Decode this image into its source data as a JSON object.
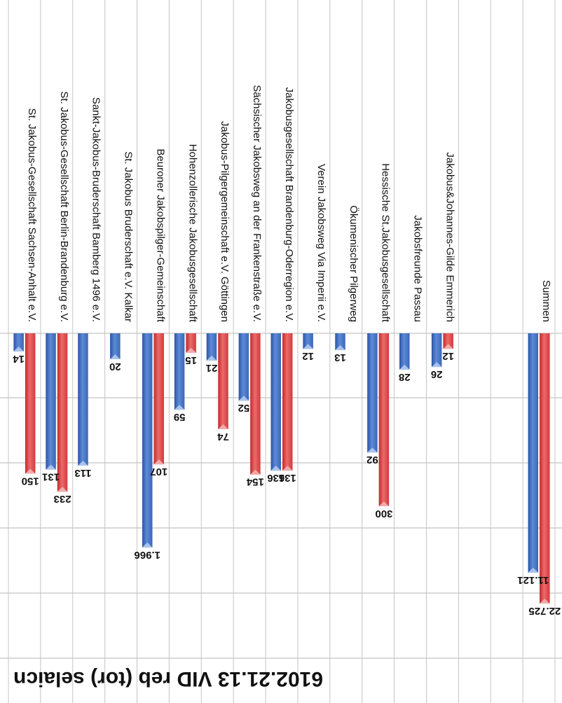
{
  "chart_data": {
    "type": "bar",
    "orientation": "horizontal",
    "title": "6102.21.13 VID reb (tor) selaicn",
    "categories": [
      "St. Jakobus-Gesellschaft Sachsen-Anhalt e.V.",
      "St. Jakobus-Gesellschaft Berlin-Brandenburg e.V.",
      "Sankt-Jakobus-Bruderschaft Bamberg 1496 e.V.",
      "St. Jakobus Bruderschaft e.V. Kalkar",
      "Beuroner Jakobspilger-Gemeinschaft",
      "Hohenzollerische Jakobusgesellschaft",
      "Jakobus-Pilgergemeinschaft e.V. Göttingen",
      "Sächsischer Jakobsweg an der Frankenstraße e.V.",
      "Jakobusgesellschaft Brandenburg-Oderregion e.V.",
      "Verein Jakobsweg Via Imperii e.V.",
      "Ökumenischer Pilgerweg",
      "Hessische St.Jakobusgesellschaft",
      "Jakobsfreunde Passau",
      "Jakobus&Johannes-Gilde Emmerich",
      "",
      "",
      "Summen"
    ],
    "series": [
      {
        "color": "#3f6fc2",
        "values": [
          14,
          131,
          113,
          20,
          1966,
          59,
          21,
          52,
          136,
          12,
          13,
          92,
          28,
          26,
          null,
          null,
          11121
        ]
      },
      {
        "color": "#d9393b",
        "values": [
          150,
          233,
          null,
          null,
          107,
          15,
          74,
          154,
          136,
          null,
          null,
          300,
          null,
          12,
          null,
          null,
          22725
        ]
      }
    ],
    "value_labels": {
      "series_0": [
        "14",
        "131",
        "113",
        "20",
        "1.966",
        "59",
        "21",
        "52",
        "136",
        "12",
        "13",
        "92",
        "28",
        "26",
        "",
        "",
        "11.121"
      ],
      "series_1": [
        "150",
        "233",
        "",
        "",
        "107",
        "15",
        "74",
        "154",
        "136",
        "",
        "",
        "300",
        "",
        "12",
        "",
        "",
        "22.725"
      ]
    },
    "grid": true
  }
}
